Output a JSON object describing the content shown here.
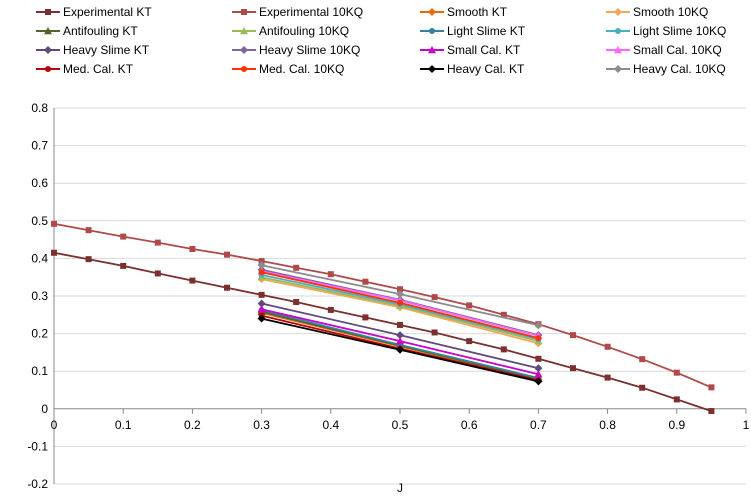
{
  "chart_data": {
    "type": "line",
    "title": "",
    "xlabel": "J",
    "ylabel": "",
    "xlim": [
      0,
      1
    ],
    "ylim": [
      -0.2,
      0.8
    ],
    "x_ticks": [
      "0",
      "0.1",
      "0.2",
      "0.3",
      "0.4",
      "0.5",
      "0.6",
      "0.7",
      "0.8",
      "0.9",
      "1"
    ],
    "y_ticks": [
      "-0.2",
      "-0.1",
      "0",
      "0.1",
      "0.2",
      "0.3",
      "0.4",
      "0.5",
      "0.6",
      "0.7",
      "0.8"
    ],
    "grid": "horizontal",
    "legend_position": "top",
    "series": [
      {
        "name": "Experimental KT",
        "color": "#7b2f2f",
        "marker": "square",
        "x": [
          0,
          0.05,
          0.1,
          0.15,
          0.2,
          0.25,
          0.3,
          0.35,
          0.4,
          0.45,
          0.5,
          0.55,
          0.6,
          0.65,
          0.7,
          0.75,
          0.8,
          0.85,
          0.9,
          0.95
        ],
        "y": [
          0.415,
          0.398,
          0.38,
          0.36,
          0.341,
          0.322,
          0.303,
          0.284,
          0.263,
          0.243,
          0.223,
          0.203,
          0.18,
          0.158,
          0.133,
          0.108,
          0.083,
          0.056,
          0.025,
          -0.006
        ]
      },
      {
        "name": "Experimental 10KQ",
        "color": "#b04a4a",
        "marker": "square",
        "x": [
          0,
          0.05,
          0.1,
          0.15,
          0.2,
          0.25,
          0.3,
          0.35,
          0.4,
          0.45,
          0.5,
          0.55,
          0.6,
          0.65,
          0.7,
          0.75,
          0.8,
          0.85,
          0.9,
          0.95
        ],
        "y": [
          0.492,
          0.475,
          0.458,
          0.442,
          0.425,
          0.41,
          0.393,
          0.375,
          0.358,
          0.338,
          0.318,
          0.297,
          0.275,
          0.25,
          0.225,
          0.196,
          0.165,
          0.132,
          0.096,
          0.057
        ]
      },
      {
        "name": "Smooth KT",
        "color": "#e36c0a",
        "marker": "diamond",
        "x": [
          0.3,
          0.5,
          0.7
        ],
        "y": [
          0.255,
          0.166,
          0.078
        ]
      },
      {
        "name": "Smooth 10KQ",
        "color": "#f2a65a",
        "marker": "diamond",
        "x": [
          0.3,
          0.5,
          0.7
        ],
        "y": [
          0.345,
          0.27,
          0.174
        ]
      },
      {
        "name": "Antifouling KT",
        "color": "#4f6228",
        "marker": "triangle",
        "x": [
          0.3,
          0.5,
          0.7
        ],
        "y": [
          0.258,
          0.168,
          0.08
        ]
      },
      {
        "name": "Antifouling 10KQ",
        "color": "#9bbb59",
        "marker": "triangle",
        "x": [
          0.3,
          0.5,
          0.7
        ],
        "y": [
          0.35,
          0.274,
          0.18
        ]
      },
      {
        "name": "Light Slime KT",
        "color": "#31859c",
        "marker": "circle",
        "x": [
          0.3,
          0.5,
          0.7
        ],
        "y": [
          0.262,
          0.17,
          0.082
        ]
      },
      {
        "name": "Light Slime 10KQ",
        "color": "#4bacc6",
        "marker": "circle",
        "x": [
          0.3,
          0.5,
          0.7
        ],
        "y": [
          0.356,
          0.278,
          0.185
        ]
      },
      {
        "name": "Heavy Slime KT",
        "color": "#604a7b",
        "marker": "diamond",
        "x": [
          0.3,
          0.5,
          0.7
        ],
        "y": [
          0.28,
          0.196,
          0.108
        ]
      },
      {
        "name": "Heavy Slime 10KQ",
        "color": "#8064a2",
        "marker": "diamond",
        "x": [
          0.3,
          0.5,
          0.7
        ],
        "y": [
          0.37,
          0.29,
          0.196
        ]
      },
      {
        "name": "Small Cal. KT",
        "color": "#cc00cc",
        "marker": "triangle",
        "x": [
          0.3,
          0.5,
          0.7
        ],
        "y": [
          0.265,
          0.18,
          0.092
        ]
      },
      {
        "name": "Small Cal. 10KQ",
        "color": "#ff66ff",
        "marker": "triangle",
        "x": [
          0.3,
          0.5,
          0.7
        ],
        "y": [
          0.366,
          0.288,
          0.194
        ]
      },
      {
        "name": "Med. Cal. KT",
        "color": "#c00000",
        "marker": "circle",
        "x": [
          0.3,
          0.5,
          0.7
        ],
        "y": [
          0.248,
          0.16,
          0.076
        ]
      },
      {
        "name": "Med. Cal. 10KQ",
        "color": "#ff3300",
        "marker": "circle",
        "x": [
          0.3,
          0.5,
          0.7
        ],
        "y": [
          0.363,
          0.282,
          0.188
        ]
      },
      {
        "name": "Heavy Cal. KT",
        "color": "#000000",
        "marker": "diamond",
        "x": [
          0.3,
          0.5,
          0.7
        ],
        "y": [
          0.24,
          0.157,
          0.073
        ]
      },
      {
        "name": "Heavy Cal. 10KQ",
        "color": "#8c8c8c",
        "marker": "diamond",
        "x": [
          0.3,
          0.5,
          0.7
        ],
        "y": [
          0.382,
          0.305,
          0.222
        ]
      }
    ]
  }
}
